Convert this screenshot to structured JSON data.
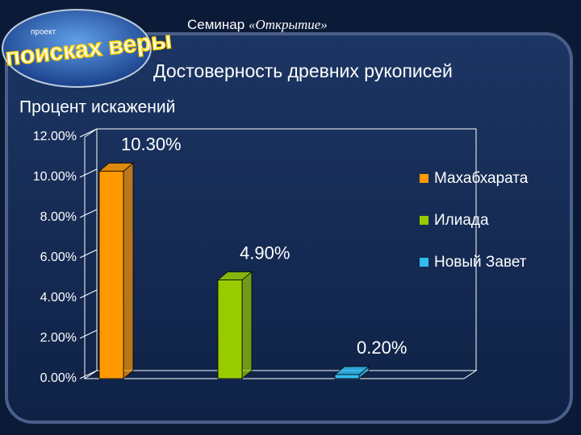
{
  "header": {
    "seminar": "Семинар",
    "name": "«Открытие»",
    "logo_small": "проект",
    "logo": "В поисках веры"
  },
  "chart_data": {
    "type": "bar3d",
    "title": "Достоверность древних рукописей",
    "subtitle": "Процент искажений",
    "series": [
      {
        "name": "Махабхарата",
        "color": "#ff9900",
        "values": [
          10.3
        ],
        "value_labels": [
          "10.30%"
        ]
      },
      {
        "name": "Илиада",
        "color": "#99cc00",
        "values": [
          4.9
        ],
        "value_labels": [
          "4.90%"
        ]
      },
      {
        "name": "Новый Завет",
        "color": "#33bbee",
        "values": [
          0.2
        ],
        "value_labels": [
          "0.20%"
        ]
      }
    ],
    "ylim": [
      0,
      12
    ],
    "yticks": [
      {
        "value": 0,
        "label": "0.00%"
      },
      {
        "value": 2,
        "label": "2.00%"
      },
      {
        "value": 4,
        "label": "4.00%"
      },
      {
        "value": 6,
        "label": "6.00%"
      },
      {
        "value": 8,
        "label": "8.00%"
      },
      {
        "value": 10,
        "label": "10.00%"
      },
      {
        "value": 12,
        "label": "12.00%"
      }
    ],
    "legend": "right"
  }
}
